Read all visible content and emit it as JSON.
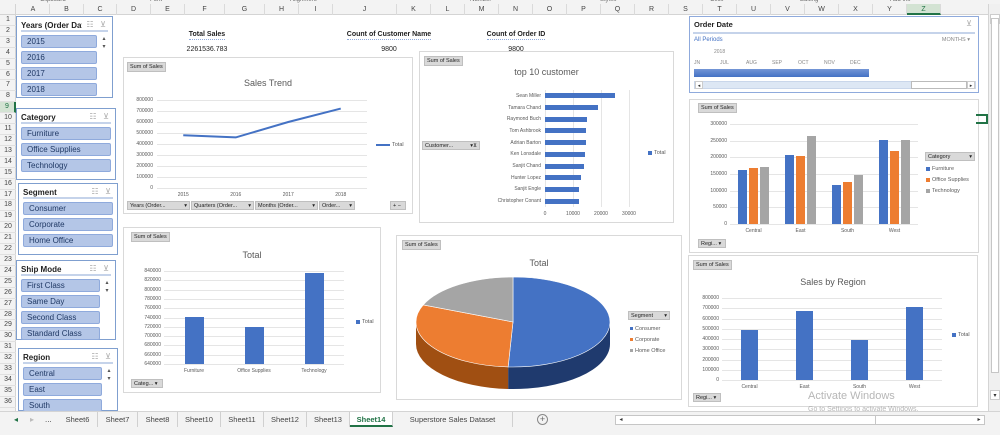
{
  "ribbon_groups": [
    "Clipboard",
    "Font",
    "Alignment",
    "Number",
    "Styles",
    "Cells",
    "Editing",
    "Add-ins"
  ],
  "columns": [
    "A",
    "B",
    "C",
    "D",
    "E",
    "F",
    "G",
    "H",
    "I",
    "J",
    "K",
    "L",
    "M",
    "N",
    "O",
    "P",
    "Q",
    "R",
    "S",
    "T",
    "U",
    "V",
    "W",
    "X",
    "Y",
    "Z"
  ],
  "selected_column": "Z",
  "rows": [
    "1",
    "2",
    "3",
    "4",
    "5",
    "6",
    "7",
    "8",
    "9",
    "10",
    "11",
    "12",
    "13",
    "14",
    "15",
    "16",
    "17",
    "18",
    "19",
    "20",
    "21",
    "22",
    "23",
    "24",
    "25",
    "26",
    "27",
    "28",
    "29",
    "30",
    "31",
    "32",
    "33",
    "34",
    "35",
    "36"
  ],
  "selected_row": "9",
  "slicers": {
    "years": {
      "title": "Years (Order Dat...",
      "items": [
        "2015",
        "2016",
        "2017",
        "2018"
      ]
    },
    "category": {
      "title": "Category",
      "items": [
        "Furniture",
        "Office Supplies",
        "Technology"
      ]
    },
    "segment": {
      "title": "Segment",
      "items": [
        "Consumer",
        "Corporate",
        "Home Office"
      ]
    },
    "ship_mode": {
      "title": "Ship Mode",
      "items": [
        "First Class",
        "Same Day",
        "Second Class",
        "Standard Class"
      ]
    },
    "region": {
      "title": "Region",
      "items": [
        "Central",
        "East",
        "South"
      ]
    }
  },
  "kpis": {
    "total_sales": {
      "label": "Total Sales",
      "value": "2261536.783"
    },
    "customer_count": {
      "label": "Count of Customer Name",
      "value": "9800"
    },
    "order_count": {
      "label": "Count of Order ID",
      "value": "9800"
    }
  },
  "timeline": {
    "title": "Order Date",
    "period_label": "All Periods",
    "unit_label": "MONTHS",
    "year": "2018",
    "months": [
      "JN",
      "JUL",
      "AUG",
      "SEP",
      "OCT",
      "NOV",
      "DEC"
    ]
  },
  "field_button_label": "Sum of Sales",
  "line_chart_filters": [
    "Years (Order...",
    "Quarters (Order...",
    "Months (Order...",
    "Order..."
  ],
  "customer_filter": "Customer...",
  "category_filter": "Categ...",
  "region_filter": "Regi...",
  "segment_filter": "Segment",
  "category_legend_filter": "Category",
  "chart_data": [
    {
      "id": "sales_trend",
      "type": "line",
      "title": "Sales Trend",
      "categories": [
        "2015",
        "2016",
        "2017",
        "2018"
      ],
      "series": [
        {
          "name": "Total",
          "values": [
            480000,
            460000,
            600000,
            722000
          ],
          "color": "#4472c4"
        }
      ],
      "yticks": [
        "800000",
        "700000",
        "600000",
        "500000",
        "400000",
        "300000",
        "200000",
        "100000",
        "0"
      ],
      "ylim": [
        0,
        800000
      ],
      "legend_position": "right",
      "grid": true
    },
    {
      "id": "top10_customer",
      "type": "bar",
      "orientation": "horizontal",
      "title": "top 10  customer",
      "categories": [
        "Sean Miller",
        "Tamara Chand",
        "Raymond Buch",
        "Tom Ashbrook",
        "Adrian Barton",
        "Ken Lonsdale",
        "Sanjit Chand",
        "Hunter Lopez",
        "Sanjit Engle",
        "Christopher Conant"
      ],
      "series": [
        {
          "name": "Total",
          "values": [
            25000,
            19000,
            15100,
            14600,
            14500,
            14200,
            14100,
            13000,
            12200,
            12100
          ],
          "color": "#4472c4"
        }
      ],
      "xticks": [
        "0",
        "10000",
        "20000",
        "30000"
      ],
      "xlim": [
        0,
        30000
      ],
      "legend_position": "right"
    },
    {
      "id": "region_by_category",
      "type": "bar",
      "title": "",
      "categories": [
        "Central",
        "East",
        "South",
        "West"
      ],
      "series": [
        {
          "name": "Furniture",
          "values": [
            163000,
            208000,
            117000,
            252000
          ],
          "color": "#4472c4"
        },
        {
          "name": "Office Supplies",
          "values": [
            167000,
            205000,
            125000,
            220000
          ],
          "color": "#ed7d31"
        },
        {
          "name": "Technology",
          "values": [
            171000,
            265000,
            148000,
            251000
          ],
          "color": "#a5a5a5"
        }
      ],
      "yticks": [
        "300000",
        "250000",
        "200000",
        "150000",
        "100000",
        "50000",
        "0"
      ],
      "ylim": [
        0,
        300000
      ],
      "legend_position": "right",
      "grid": true
    },
    {
      "id": "category_total",
      "type": "bar",
      "title": "Total",
      "categories": [
        "Furniture",
        "Office Supplies",
        "Technology"
      ],
      "series": [
        {
          "name": "Total",
          "values": [
            741700,
            719000,
            836000
          ],
          "color": "#4472c4"
        }
      ],
      "yticks": [
        "840000",
        "820000",
        "800000",
        "780000",
        "760000",
        "740000",
        "720000",
        "700000",
        "680000",
        "660000",
        "640000"
      ],
      "ylim": [
        640000,
        840000
      ],
      "legend_position": "right",
      "grid": true
    },
    {
      "id": "segment_pie",
      "type": "pie",
      "title": "Total",
      "categories": [
        "Consumer",
        "Corporate",
        "Home Office"
      ],
      "values": [
        50.8,
        30.4,
        18.8
      ],
      "colors": [
        "#4472c4",
        "#ed7d31",
        "#a5a5a5"
      ],
      "legend_position": "right"
    },
    {
      "id": "sales_by_region",
      "type": "bar",
      "title": "Sales by Region",
      "categories": [
        "Central",
        "East",
        "South",
        "West"
      ],
      "series": [
        {
          "name": "Total",
          "values": [
            492000,
            669000,
            389000,
            710000
          ],
          "color": "#4472c4"
        }
      ],
      "yticks": [
        "800000",
        "700000",
        "600000",
        "500000",
        "400000",
        "300000",
        "200000",
        "100000",
        "0"
      ],
      "ylim": [
        0,
        800000
      ],
      "legend_position": "right",
      "grid": true
    }
  ],
  "sheet_tabs": [
    "Sheet6",
    "Sheet7",
    "Sheet8",
    "Sheet10",
    "Sheet11",
    "Sheet12",
    "Sheet13",
    "Sheet14",
    "Superstore Sales Dataset"
  ],
  "active_sheet": "Sheet14",
  "tab_nav": {
    "prev": "◂",
    "next": "▸",
    "more": "...",
    "add": "+"
  },
  "watermark": {
    "line1": "Activate Windows",
    "line2": "Go to Settings to activate Windows."
  }
}
